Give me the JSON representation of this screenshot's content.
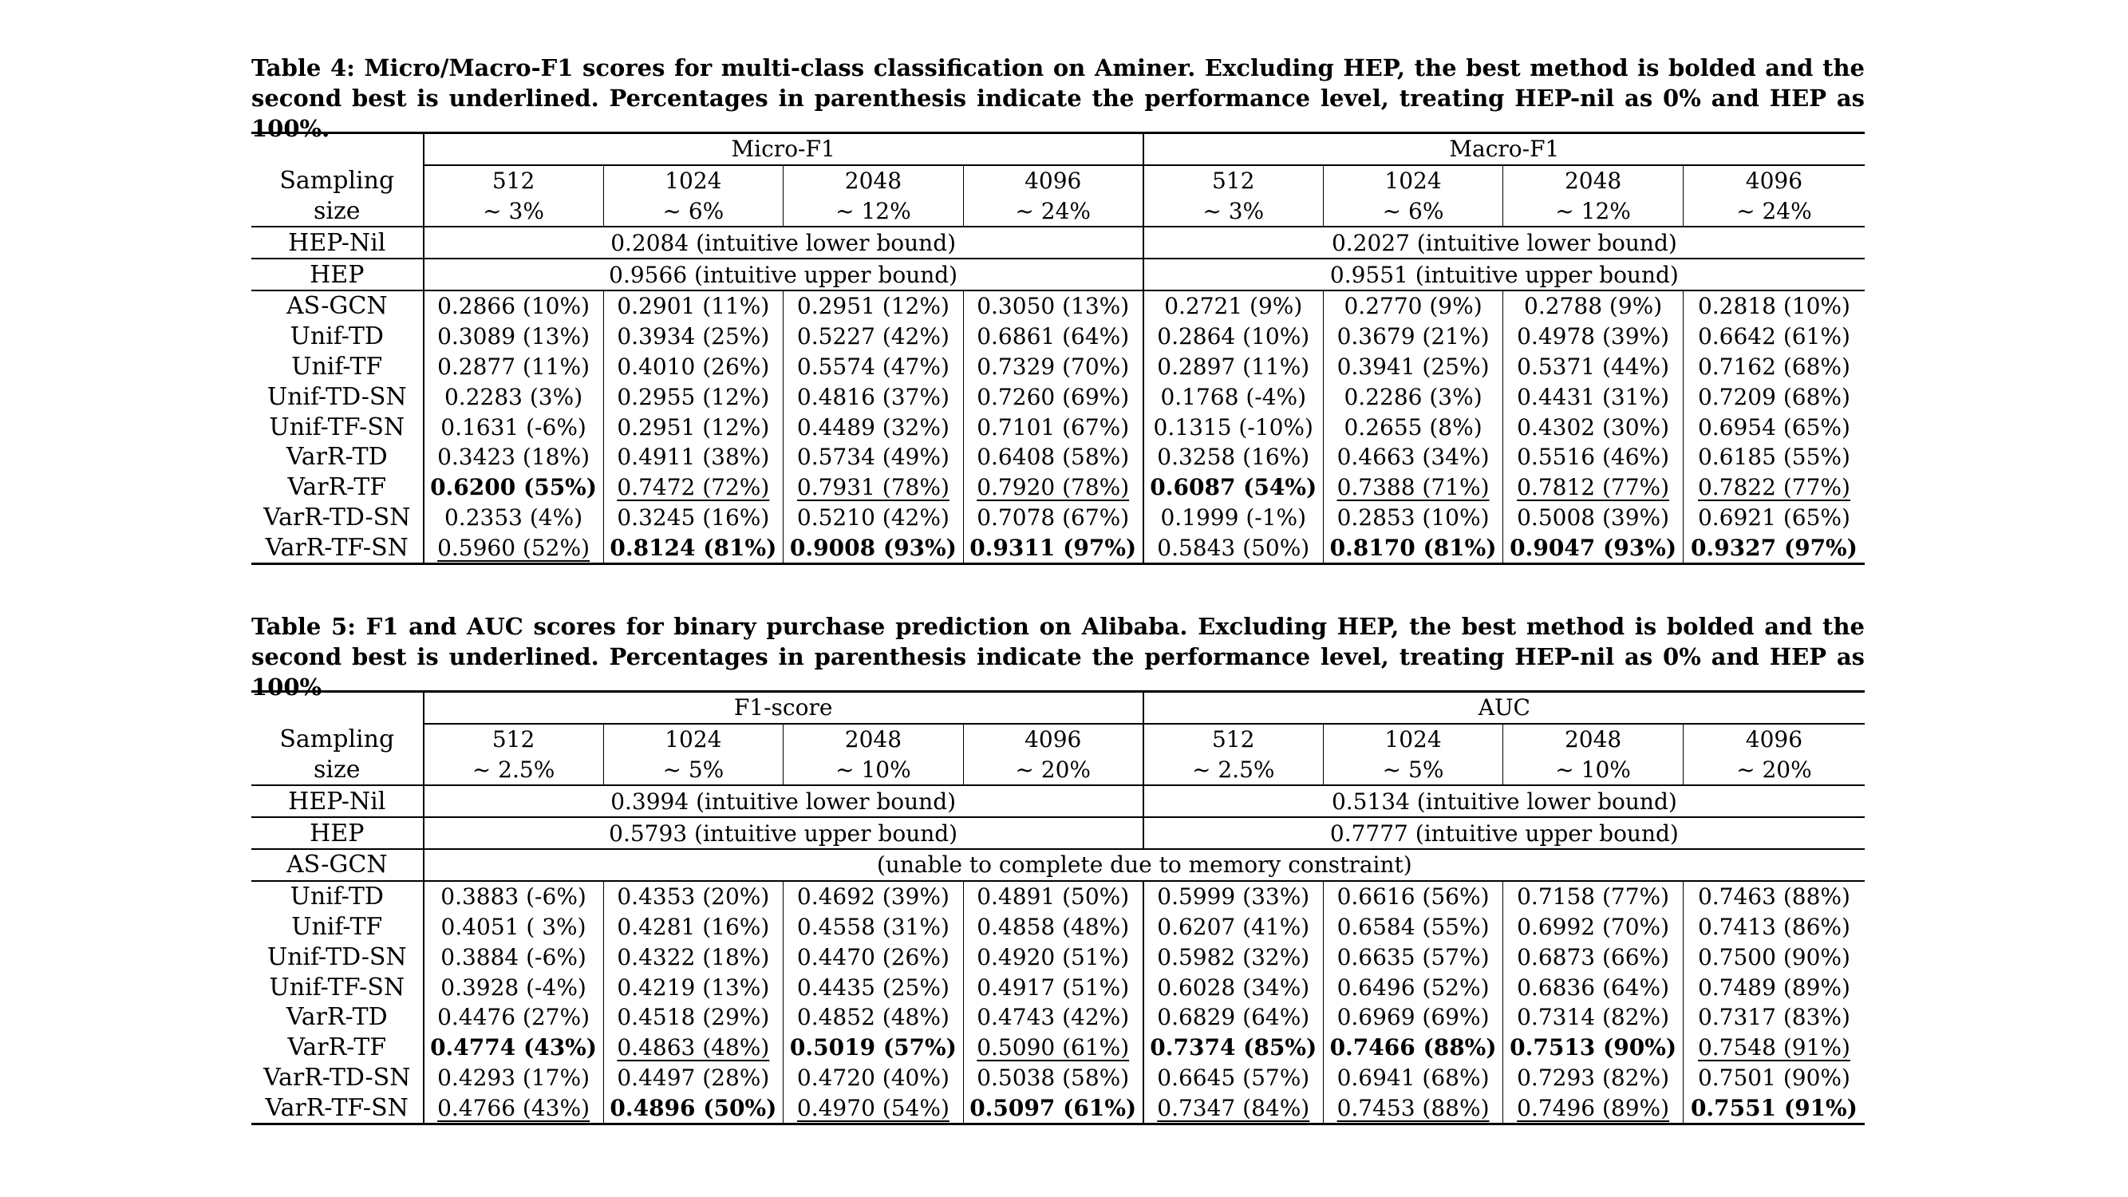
{
  "table4": {
    "caption_lines": [
      "Table 4: Micro/Macro-F1 scores for multi-class classification on Aminer. Excluding HEP, the best method is bolded and the",
      "second best is underlined. Percentages in parenthesis indicate the performance level, treating HEP-nil as 0% and HEP as 100%."
    ],
    "group1": "Micro-F1",
    "group2": "Macro-F1",
    "stub_line1": "Sampling",
    "stub_line2": "size",
    "sizes": [
      "512",
      "1024",
      "2048",
      "4096",
      "512",
      "1024",
      "2048",
      "4096"
    ],
    "pcts": [
      "~ 3%",
      "~ 6%",
      "~ 12%",
      "~ 24%",
      "~ 3%",
      "~ 6%",
      "~ 12%",
      "~ 24%"
    ],
    "hepnil_label": "HEP-Nil",
    "hepnil_left": "0.2084 (intuitive lower bound)",
    "hepnil_right": "0.2027 (intuitive lower bound)",
    "hep_label": "HEP",
    "hep_left": "0.9566 (intuitive upper bound)",
    "hep_right": "0.9551 (intuitive upper bound)",
    "rows": [
      {
        "method": "AS-GCN",
        "cells": [
          {
            "v": "0.2866 (10%)",
            "s": ""
          },
          {
            "v": "0.2901 (11%)",
            "s": ""
          },
          {
            "v": "0.2951 (12%)",
            "s": ""
          },
          {
            "v": "0.3050 (13%)",
            "s": ""
          },
          {
            "v": "0.2721 (9%)",
            "s": ""
          },
          {
            "v": "0.2770 (9%)",
            "s": ""
          },
          {
            "v": "0.2788 (9%)",
            "s": ""
          },
          {
            "v": "0.2818 (10%)",
            "s": ""
          }
        ]
      },
      {
        "method": "Unif-TD",
        "cells": [
          {
            "v": "0.3089 (13%)",
            "s": ""
          },
          {
            "v": "0.3934 (25%)",
            "s": ""
          },
          {
            "v": "0.5227 (42%)",
            "s": ""
          },
          {
            "v": "0.6861 (64%)",
            "s": ""
          },
          {
            "v": "0.2864 (10%)",
            "s": ""
          },
          {
            "v": "0.3679 (21%)",
            "s": ""
          },
          {
            "v": "0.4978 (39%)",
            "s": ""
          },
          {
            "v": "0.6642 (61%)",
            "s": ""
          }
        ]
      },
      {
        "method": "Unif-TF",
        "cells": [
          {
            "v": "0.2877 (11%)",
            "s": ""
          },
          {
            "v": "0.4010 (26%)",
            "s": ""
          },
          {
            "v": "0.5574 (47%)",
            "s": ""
          },
          {
            "v": "0.7329 (70%)",
            "s": ""
          },
          {
            "v": "0.2897 (11%)",
            "s": ""
          },
          {
            "v": "0.3941 (25%)",
            "s": ""
          },
          {
            "v": "0.5371 (44%)",
            "s": ""
          },
          {
            "v": "0.7162 (68%)",
            "s": ""
          }
        ]
      },
      {
        "method": "Unif-TD-SN",
        "cells": [
          {
            "v": "0.2283 (3%)",
            "s": ""
          },
          {
            "v": "0.2955 (12%)",
            "s": ""
          },
          {
            "v": "0.4816 (37%)",
            "s": ""
          },
          {
            "v": "0.7260 (69%)",
            "s": ""
          },
          {
            "v": "0.1768 (-4%)",
            "s": ""
          },
          {
            "v": "0.2286 (3%)",
            "s": ""
          },
          {
            "v": "0.4431 (31%)",
            "s": ""
          },
          {
            "v": "0.7209 (68%)",
            "s": ""
          }
        ]
      },
      {
        "method": "Unif-TF-SN",
        "cells": [
          {
            "v": "0.1631 (-6%)",
            "s": ""
          },
          {
            "v": "0.2951 (12%)",
            "s": ""
          },
          {
            "v": "0.4489 (32%)",
            "s": ""
          },
          {
            "v": "0.7101 (67%)",
            "s": ""
          },
          {
            "v": "0.1315 (-10%)",
            "s": ""
          },
          {
            "v": "0.2655 (8%)",
            "s": ""
          },
          {
            "v": "0.4302 (30%)",
            "s": ""
          },
          {
            "v": "0.6954 (65%)",
            "s": ""
          }
        ]
      },
      {
        "method": "VarR-TD",
        "cells": [
          {
            "v": "0.3423 (18%)",
            "s": ""
          },
          {
            "v": "0.4911 (38%)",
            "s": ""
          },
          {
            "v": "0.5734 (49%)",
            "s": ""
          },
          {
            "v": "0.6408 (58%)",
            "s": ""
          },
          {
            "v": "0.3258 (16%)",
            "s": ""
          },
          {
            "v": "0.4663 (34%)",
            "s": ""
          },
          {
            "v": "0.5516 (46%)",
            "s": ""
          },
          {
            "v": "0.6185 (55%)",
            "s": ""
          }
        ]
      },
      {
        "method": "VarR-TF",
        "cells": [
          {
            "v": "0.6200 (55%)",
            "s": "b"
          },
          {
            "v": "0.7472 (72%)",
            "s": "u"
          },
          {
            "v": "0.7931 (78%)",
            "s": "u"
          },
          {
            "v": "0.7920 (78%)",
            "s": "u"
          },
          {
            "v": "0.6087 (54%)",
            "s": "b"
          },
          {
            "v": "0.7388 (71%)",
            "s": "u"
          },
          {
            "v": "0.7812 (77%)",
            "s": "u"
          },
          {
            "v": "0.7822 (77%)",
            "s": "u"
          }
        ]
      },
      {
        "method": "VarR-TD-SN",
        "cells": [
          {
            "v": "0.2353 (4%)",
            "s": ""
          },
          {
            "v": "0.3245 (16%)",
            "s": ""
          },
          {
            "v": "0.5210 (42%)",
            "s": ""
          },
          {
            "v": "0.7078 (67%)",
            "s": ""
          },
          {
            "v": "0.1999 (-1%)",
            "s": ""
          },
          {
            "v": "0.2853 (10%)",
            "s": ""
          },
          {
            "v": "0.5008 (39%)",
            "s": ""
          },
          {
            "v": "0.6921 (65%)",
            "s": ""
          }
        ]
      },
      {
        "method": "VarR-TF-SN",
        "cells": [
          {
            "v": "0.5960 (52%)",
            "s": "u"
          },
          {
            "v": "0.8124 (81%)",
            "s": "b"
          },
          {
            "v": "0.9008 (93%)",
            "s": "b"
          },
          {
            "v": "0.9311 (97%)",
            "s": "b"
          },
          {
            "v": "0.5843 (50%)",
            "s": ""
          },
          {
            "v": "0.8170 (81%)",
            "s": "b"
          },
          {
            "v": "0.9047 (93%)",
            "s": "b"
          },
          {
            "v": "0.9327 (97%)",
            "s": "b"
          }
        ]
      }
    ]
  },
  "table5": {
    "caption_lines": [
      "Table 5: F1 and AUC scores for binary purchase prediction on Alibaba. Excluding HEP, the best method is bolded and the",
      "second best is underlined. Percentages in parenthesis indicate the performance level, treating HEP-nil as 0% and HEP as 100%"
    ],
    "group1": "F1-score",
    "group2": "AUC",
    "stub_line1": "Sampling",
    "stub_line2": "size",
    "sizes": [
      "512",
      "1024",
      "2048",
      "4096",
      "512",
      "1024",
      "2048",
      "4096"
    ],
    "pcts": [
      "~ 2.5%",
      "~ 5%",
      "~ 10%",
      "~ 20%",
      "~ 2.5%",
      "~ 5%",
      "~ 10%",
      "~ 20%"
    ],
    "hepnil_label": "HEP-Nil",
    "hepnil_left": "0.3994 (intuitive lower bound)",
    "hepnil_right": "0.5134 (intuitive lower bound)",
    "hep_label": "HEP",
    "hep_left": "0.5793 (intuitive upper bound)",
    "hep_right": "0.7777 (intuitive upper bound)",
    "asgcn_label": "AS-GCN",
    "asgcn_note": "(unable to complete due to memory constraint)",
    "rows": [
      {
        "method": "Unif-TD",
        "cells": [
          {
            "v": "0.3883 (-6%)",
            "s": ""
          },
          {
            "v": "0.4353 (20%)",
            "s": ""
          },
          {
            "v": "0.4692 (39%)",
            "s": ""
          },
          {
            "v": "0.4891 (50%)",
            "s": ""
          },
          {
            "v": "0.5999 (33%)",
            "s": ""
          },
          {
            "v": "0.6616 (56%)",
            "s": ""
          },
          {
            "v": "0.7158 (77%)",
            "s": ""
          },
          {
            "v": "0.7463 (88%)",
            "s": ""
          }
        ]
      },
      {
        "method": "Unif-TF",
        "cells": [
          {
            "v": "0.4051 ( 3%)",
            "s": ""
          },
          {
            "v": "0.4281 (16%)",
            "s": ""
          },
          {
            "v": "0.4558 (31%)",
            "s": ""
          },
          {
            "v": "0.4858 (48%)",
            "s": ""
          },
          {
            "v": "0.6207 (41%)",
            "s": ""
          },
          {
            "v": "0.6584 (55%)",
            "s": ""
          },
          {
            "v": "0.6992 (70%)",
            "s": ""
          },
          {
            "v": "0.7413 (86%)",
            "s": ""
          }
        ]
      },
      {
        "method": "Unif-TD-SN",
        "cells": [
          {
            "v": "0.3884 (-6%)",
            "s": ""
          },
          {
            "v": "0.4322 (18%)",
            "s": ""
          },
          {
            "v": "0.4470 (26%)",
            "s": ""
          },
          {
            "v": "0.4920 (51%)",
            "s": ""
          },
          {
            "v": "0.5982 (32%)",
            "s": ""
          },
          {
            "v": "0.6635 (57%)",
            "s": ""
          },
          {
            "v": "0.6873 (66%)",
            "s": ""
          },
          {
            "v": "0.7500 (90%)",
            "s": ""
          }
        ]
      },
      {
        "method": "Unif-TF-SN",
        "cells": [
          {
            "v": "0.3928 (-4%)",
            "s": ""
          },
          {
            "v": "0.4219 (13%)",
            "s": ""
          },
          {
            "v": "0.4435 (25%)",
            "s": ""
          },
          {
            "v": "0.4917 (51%)",
            "s": ""
          },
          {
            "v": "0.6028 (34%)",
            "s": ""
          },
          {
            "v": "0.6496 (52%)",
            "s": ""
          },
          {
            "v": "0.6836 (64%)",
            "s": ""
          },
          {
            "v": "0.7489 (89%)",
            "s": ""
          }
        ]
      },
      {
        "method": "VarR-TD",
        "cells": [
          {
            "v": "0.4476 (27%)",
            "s": ""
          },
          {
            "v": "0.4518 (29%)",
            "s": ""
          },
          {
            "v": "0.4852 (48%)",
            "s": ""
          },
          {
            "v": "0.4743 (42%)",
            "s": ""
          },
          {
            "v": "0.6829 (64%)",
            "s": ""
          },
          {
            "v": "0.6969 (69%)",
            "s": ""
          },
          {
            "v": "0.7314 (82%)",
            "s": ""
          },
          {
            "v": "0.7317 (83%)",
            "s": ""
          }
        ]
      },
      {
        "method": "VarR-TF",
        "cells": [
          {
            "v": "0.4774 (43%)",
            "s": "b"
          },
          {
            "v": "0.4863 (48%)",
            "s": "u"
          },
          {
            "v": "0.5019 (57%)",
            "s": "b"
          },
          {
            "v": "0.5090 (61%)",
            "s": "u"
          },
          {
            "v": "0.7374 (85%)",
            "s": "b"
          },
          {
            "v": "0.7466 (88%)",
            "s": "b"
          },
          {
            "v": "0.7513 (90%)",
            "s": "b"
          },
          {
            "v": "0.7548 (91%)",
            "s": "u"
          }
        ]
      },
      {
        "method": "VarR-TD-SN",
        "cells": [
          {
            "v": "0.4293 (17%)",
            "s": ""
          },
          {
            "v": "0.4497 (28%)",
            "s": ""
          },
          {
            "v": "0.4720 (40%)",
            "s": ""
          },
          {
            "v": "0.5038 (58%)",
            "s": ""
          },
          {
            "v": "0.6645 (57%)",
            "s": ""
          },
          {
            "v": "0.6941 (68%)",
            "s": ""
          },
          {
            "v": "0.7293 (82%)",
            "s": ""
          },
          {
            "v": "0.7501 (90%)",
            "s": ""
          }
        ]
      },
      {
        "method": "VarR-TF-SN",
        "cells": [
          {
            "v": "0.4766 (43%)",
            "s": "u"
          },
          {
            "v": "0.4896 (50%)",
            "s": "b"
          },
          {
            "v": "0.4970 (54%)",
            "s": "u"
          },
          {
            "v": "0.5097 (61%)",
            "s": "b"
          },
          {
            "v": "0.7347 (84%)",
            "s": "u"
          },
          {
            "v": "0.7453 (88%)",
            "s": "u"
          },
          {
            "v": "0.7496 (89%)",
            "s": "u"
          },
          {
            "v": "0.7551 (91%)",
            "s": "b"
          }
        ]
      }
    ]
  }
}
